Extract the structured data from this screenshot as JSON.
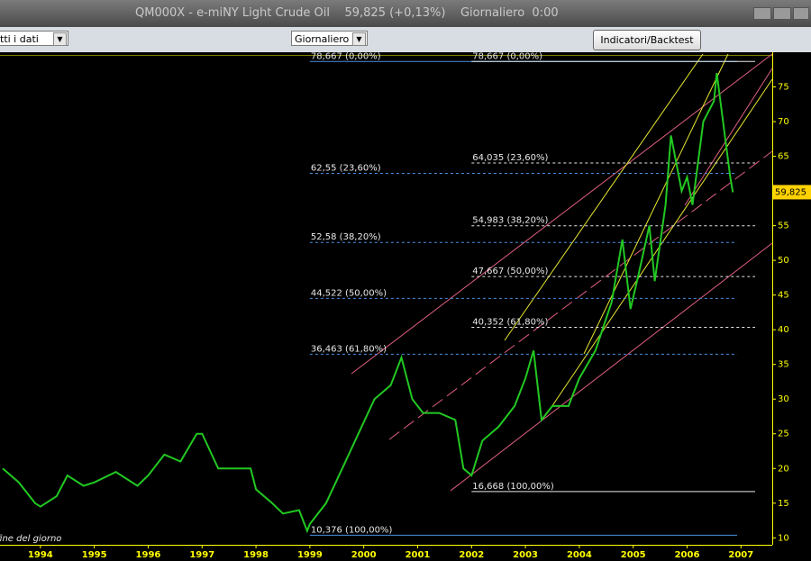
{
  "window": {
    "title": "QM000X - e-miNY Light Crude Oil    59,825 (+0,13%)    Giornaliero  0:00"
  },
  "toolbar": {
    "range": "tti i dati",
    "period": "Giornaliero",
    "button": "Indicatori/Backtest"
  },
  "chart_data": {
    "type": "line",
    "x": [
      1993.3,
      1993.6,
      1993.9,
      1994.0,
      1994.3,
      1994.5,
      1994.8,
      1995.0,
      1995.4,
      1995.8,
      1996.0,
      1996.3,
      1996.6,
      1996.9,
      1997.0,
      1997.3,
      1997.6,
      1997.9,
      1998.0,
      1998.3,
      1998.5,
      1998.8,
      1998.95,
      1999.0,
      1999.3,
      1999.6,
      1999.9,
      2000.2,
      2000.5,
      2000.7,
      2000.9,
      2001.1,
      2001.4,
      2001.7,
      2001.85,
      2002.0,
      2002.2,
      2002.5,
      2002.8,
      2003.0,
      2003.15,
      2003.3,
      2003.5,
      2003.8,
      2004.0,
      2004.3,
      2004.6,
      2004.8,
      2004.95,
      2005.1,
      2005.3,
      2005.4,
      2005.6,
      2005.7,
      2005.9,
      2006.0,
      2006.1,
      2006.3,
      2006.5,
      2006.55,
      2006.7,
      2006.8,
      2006.85
    ],
    "values": [
      20,
      18,
      15,
      14.5,
      16,
      19,
      17.5,
      18,
      19.5,
      17.5,
      19,
      22,
      21,
      25,
      25,
      20,
      20,
      20,
      17,
      15,
      13.5,
      14,
      11,
      12,
      15,
      20,
      25,
      30,
      32,
      36,
      30,
      28,
      28,
      27,
      20,
      19,
      24,
      26,
      29,
      33,
      37,
      27,
      29,
      29,
      33,
      37,
      44,
      53,
      43,
      48,
      55,
      47,
      58,
      68,
      60,
      62,
      58,
      70,
      73,
      77,
      68,
      62,
      59.8
    ],
    "color": "#22c822",
    "xlim": [
      1993.25,
      2007.58
    ],
    "xticks": [
      1994,
      1995,
      1996,
      1997,
      1998,
      1999,
      2000,
      2001,
      2002,
      2003,
      2004,
      2005,
      2006,
      2007
    ],
    "ylim": [
      9,
      80
    ],
    "yticks": [
      10,
      15,
      20,
      25,
      30,
      35,
      40,
      45,
      50,
      55,
      60,
      65,
      70,
      75
    ],
    "last_price": {
      "value": 59.825,
      "label": "59,825"
    },
    "fib_sets": [
      {
        "color": "#4a90e0",
        "levels": [
          {
            "value": 78.667,
            "label": "78,667 (0,00%)"
          },
          {
            "value": 62.55,
            "label": "62,55 (23,60%)"
          },
          {
            "value": 52.58,
            "label": "52,58 (38,20%)"
          },
          {
            "value": 44.522,
            "label": "44,522 (50,00%)"
          },
          {
            "value": 36.463,
            "label": "36,463 (61,80%)"
          },
          {
            "value": 10.376,
            "label": "10,376 (100,00%)"
          }
        ]
      },
      {
        "color": "#e8e8e8",
        "levels": [
          {
            "value": 78.667,
            "label": "78,667 (0,00%)"
          },
          {
            "value": 64.035,
            "label": "64,035 (23,60%)"
          },
          {
            "value": 54.983,
            "label": "54,983 (38,20%)"
          },
          {
            "value": 47.667,
            "label": "47,667 (50,00%)"
          },
          {
            "value": 40.352,
            "label": "40,352 (61,80%)"
          },
          {
            "value": 16.668,
            "label": "16,668 (100,00%)"
          }
        ]
      }
    ],
    "footnote": "fine del giorno"
  }
}
